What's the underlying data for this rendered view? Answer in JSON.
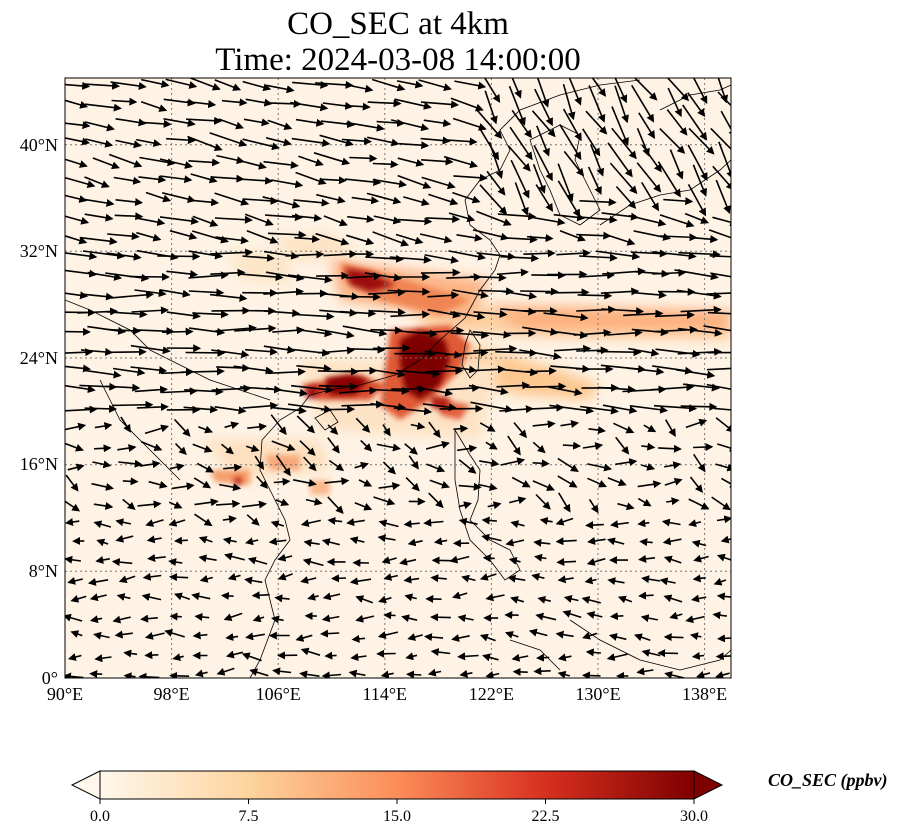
{
  "title": {
    "line1": "CO_SEC at 4km",
    "line2": "Time: 2024-03-08 14:00:00"
  },
  "map": {
    "lon_ticks": [
      "90°E",
      "98°E",
      "106°E",
      "114°E",
      "122°E",
      "130°E",
      "138°E"
    ],
    "lat_ticks": [
      "0°",
      "8°N",
      "16°N",
      "24°N",
      "32°N",
      "40°N"
    ],
    "lon_range": [
      90,
      140
    ],
    "lat_range": [
      0,
      45
    ],
    "gridlines": "dotted",
    "variable": "CO_SEC",
    "level": "4km"
  },
  "colorbar": {
    "label": "CO_SEC (ppbv)",
    "ticks": [
      "0.0",
      "7.5",
      "15.0",
      "22.5",
      "30.0"
    ],
    "range": [
      0,
      30
    ],
    "colormap": "OrRd",
    "colors": [
      "#fff7ec",
      "#fdd49e",
      "#fc8d59",
      "#d7301f",
      "#7f0000"
    ],
    "extend": "both"
  }
}
